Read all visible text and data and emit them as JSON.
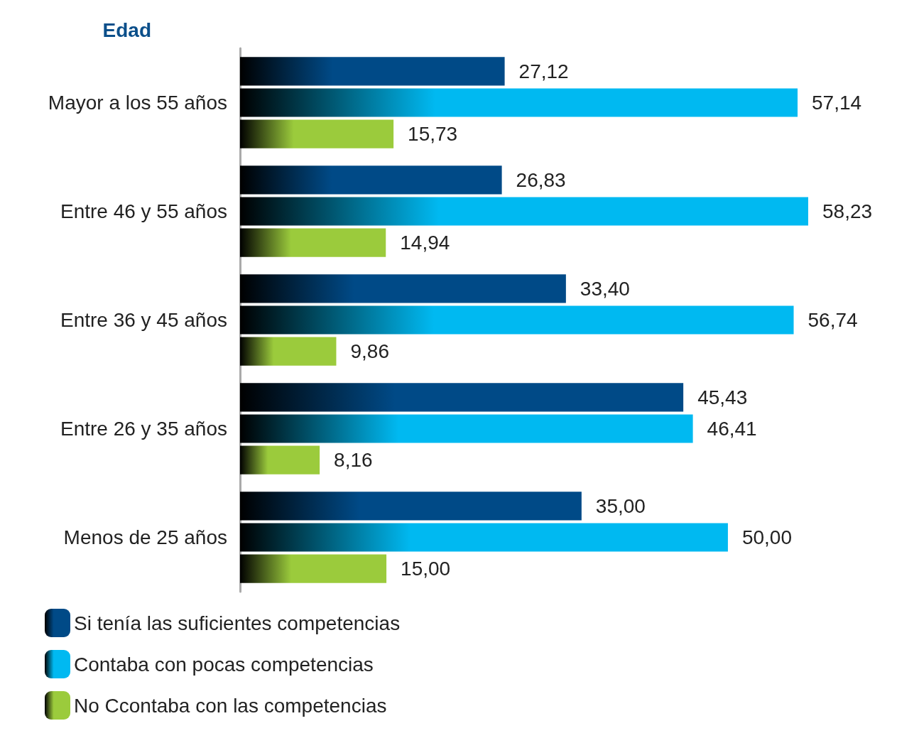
{
  "chart_data": {
    "type": "bar",
    "orientation": "horizontal",
    "ylabel": "Edad",
    "categories": [
      "Mayor a los 55 años",
      "Entre 46 y 55 años",
      "Entre 36 y 45 años",
      "Entre 26 y 35 años",
      "Menos de 25 años"
    ],
    "series": [
      {
        "name": "Si tenía las suficientes competencias",
        "color": "#004a87",
        "values": [
          27.12,
          26.83,
          33.4,
          45.43,
          35.0
        ],
        "value_labels": [
          "27,12",
          "26,83",
          "33,40",
          "45,43",
          "35,00"
        ]
      },
      {
        "name": "Contaba con pocas competencias",
        "color": "#00b9f1",
        "values": [
          57.14,
          58.23,
          56.74,
          46.41,
          50.0
        ],
        "value_labels": [
          "57,14",
          "58,23",
          "56,74",
          "46,41",
          "50,00"
        ]
      },
      {
        "name": "No Ccontaba con las competencias",
        "color": "#9bcb3c",
        "values": [
          15.73,
          14.94,
          9.86,
          8.16,
          15.0
        ],
        "value_labels": [
          "15,73",
          "14,94",
          "9,86",
          "8,16",
          "15,00"
        ]
      }
    ],
    "legend": "bottom left"
  }
}
